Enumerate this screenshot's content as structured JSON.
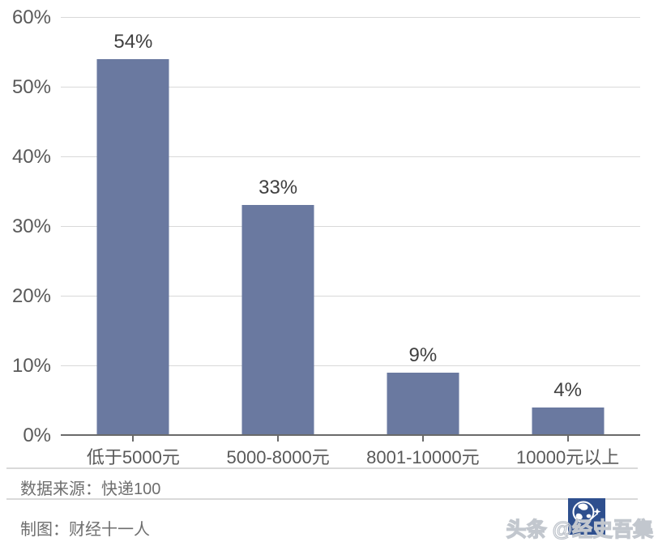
{
  "chart_data": {
    "type": "bar",
    "title": "",
    "categories": [
      "低于5000元",
      "5000-8000元",
      "8001-10000元",
      "10000元以上"
    ],
    "values": [
      54,
      33,
      9,
      4
    ],
    "value_labels": [
      "54%",
      "33%",
      "9%",
      "4%"
    ],
    "series_name": "",
    "yticks": [
      {
        "value": 0,
        "label": "0%"
      },
      {
        "value": 10,
        "label": "10%"
      },
      {
        "value": 20,
        "label": "20%"
      },
      {
        "value": 30,
        "label": "30%"
      },
      {
        "value": 40,
        "label": "40%"
      },
      {
        "value": 50,
        "label": "50%"
      },
      {
        "value": 60,
        "label": "60%"
      }
    ],
    "ylim": [
      0,
      60
    ],
    "xlabel": "",
    "ylabel": "",
    "grid": true,
    "legend_position": "none",
    "bar_color": "#6a79a0"
  },
  "footer": {
    "source": "数据来源：快递100",
    "credit": "制图：财经十一人"
  },
  "watermark": {
    "text": "头条 @经史吾集",
    "logo_name": "globe-shooting-star-logo",
    "logo_color": "#2e4f8e"
  },
  "style_colors": {
    "bar": "#6a79a0",
    "gridline": "#d9d9d9",
    "axis_line": "#6a6a6a",
    "axis_label": "#595959",
    "data_label": "#404040",
    "footer_text": "#6e6e6e",
    "watermark_stroke": "#c2c7ce"
  }
}
